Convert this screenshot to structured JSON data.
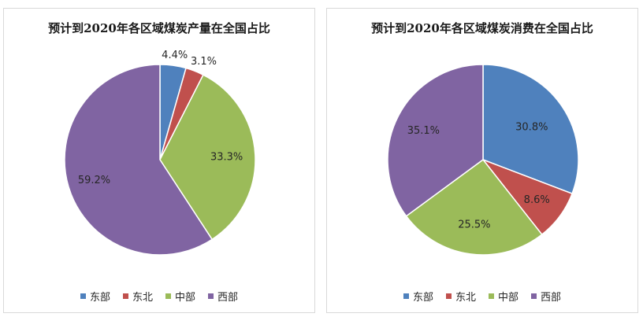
{
  "chart_data": [
    {
      "type": "pie",
      "title": "预计到2020年各区域煤炭产量在全国占比",
      "categories": [
        "东部",
        "东北",
        "中部",
        "西部"
      ],
      "values": [
        4.4,
        3.1,
        33.3,
        59.2
      ],
      "labels": [
        "4.4%",
        "3.1%",
        "33.3%",
        "59.2%"
      ],
      "colors": [
        "#4f81bd",
        "#c0504d",
        "#9bbb59",
        "#8064a2"
      ],
      "legend": "bottom",
      "start": "top, clockwise"
    },
    {
      "type": "pie",
      "title": "预计到2020年各区域煤炭消费在全国占比",
      "categories": [
        "东部",
        "东北",
        "中部",
        "西部"
      ],
      "values": [
        30.8,
        8.6,
        25.5,
        35.1
      ],
      "labels": [
        "30.8%",
        "8.6%",
        "25.5%",
        "35.1%"
      ],
      "colors": [
        "#4f81bd",
        "#c0504d",
        "#9bbb59",
        "#8064a2"
      ],
      "legend": "bottom",
      "start": "top, clockwise"
    }
  ]
}
